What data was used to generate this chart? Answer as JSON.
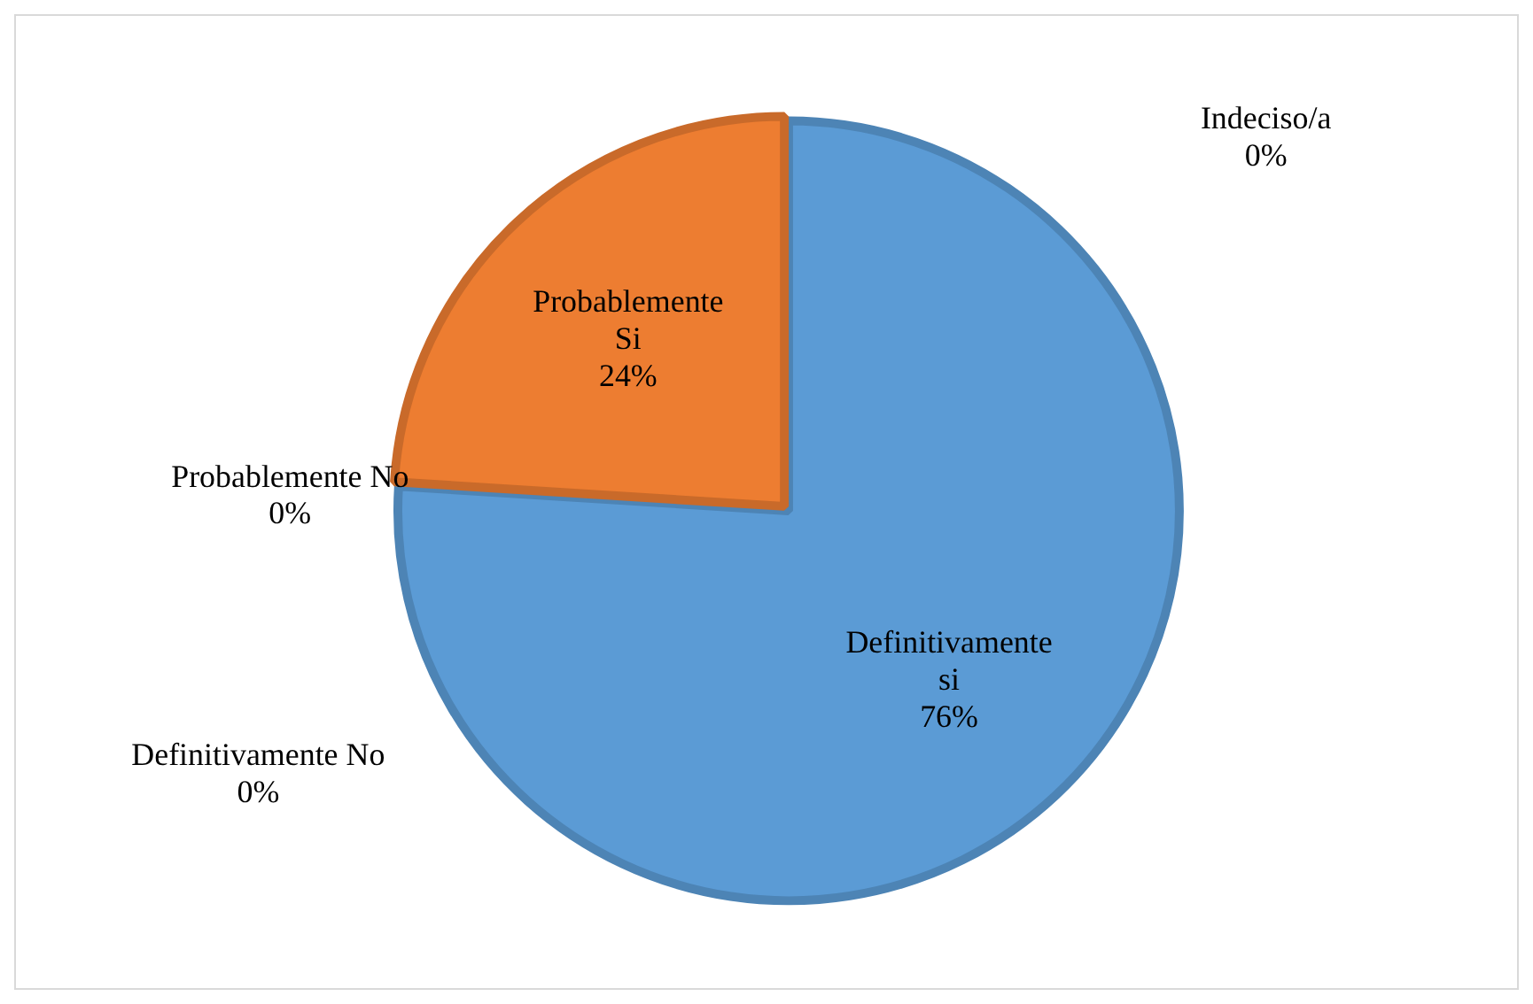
{
  "chart_data": {
    "type": "pie",
    "categories": [
      "Definitivamente si",
      "Definitivamente No",
      "Probablemente No",
      "Probablemente Si",
      "Indeciso/a"
    ],
    "values": [
      76,
      0,
      0,
      24,
      0
    ],
    "colors": [
      "#5b9bd5",
      "#a5a5a5",
      "#ffc000",
      "#ed7d31",
      "#4472c4"
    ],
    "value_labels": [
      "76%",
      "0%",
      "0%",
      "24%",
      "0%"
    ],
    "legend": false
  }
}
